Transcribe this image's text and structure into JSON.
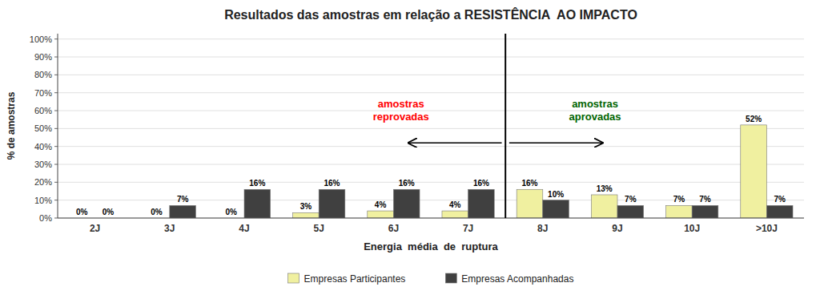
{
  "chart_data": {
    "type": "bar",
    "title": "Resultados das amostras em relação a RESISTÊNCIA  AO IMPACTO",
    "x_label": "Energia  média  de  ruptura",
    "y_label": "% de amostras",
    "categories": [
      "2J",
      "3J",
      "4J",
      "5J",
      "6J",
      "7J",
      "8J",
      "9J",
      "10J",
      ">10J"
    ],
    "series": [
      {
        "name": "Empresas Participantes",
        "color": "#f0f0a0",
        "values": [
          0,
          0,
          0,
          3,
          4,
          4,
          16,
          13,
          7,
          52
        ],
        "value_labels": [
          "0%",
          "0%",
          "0%",
          "3%",
          "4%",
          "4%",
          "16%",
          "13%",
          "7%",
          "52%"
        ]
      },
      {
        "name": "Empresas Acompanhadas",
        "color": "#404040",
        "values": [
          0,
          7,
          16,
          16,
          16,
          16,
          10,
          7,
          7,
          7
        ],
        "value_labels": [
          "0%",
          "7%",
          "16%",
          "16%",
          "16%",
          "16%",
          "10%",
          "7%",
          "7%",
          "7%"
        ]
      }
    ],
    "ylim": [
      0,
      103
    ],
    "yticks": [
      {
        "value": 0,
        "label": "0%"
      },
      {
        "value": 10,
        "label": "10%"
      },
      {
        "value": 20,
        "label": "20%"
      },
      {
        "value": 30,
        "label": "30%"
      },
      {
        "value": 40,
        "label": "40%"
      },
      {
        "value": 50,
        "label": "50%"
      },
      {
        "value": 60,
        "label": "60%"
      },
      {
        "value": 70,
        "label": "70%"
      },
      {
        "value": 80,
        "label": "80%"
      },
      {
        "value": 90,
        "label": "90%"
      },
      {
        "value": 100,
        "label": "100%"
      }
    ],
    "grid": true,
    "data_labels": true,
    "legend": "bottom",
    "annotations": [
      {
        "type": "vline",
        "between": [
          "7J",
          "8J"
        ]
      },
      {
        "type": "arrow",
        "y": 42,
        "direction": "left"
      },
      {
        "type": "arrow",
        "y": 42,
        "direction": "right"
      },
      {
        "type": "text",
        "text": "amostras\nreprovadas",
        "y": 60,
        "color": "red",
        "side": "left"
      },
      {
        "type": "text",
        "text": "amostras\naprovadas",
        "y": 60,
        "color": "darkgreen",
        "side": "right"
      }
    ]
  }
}
